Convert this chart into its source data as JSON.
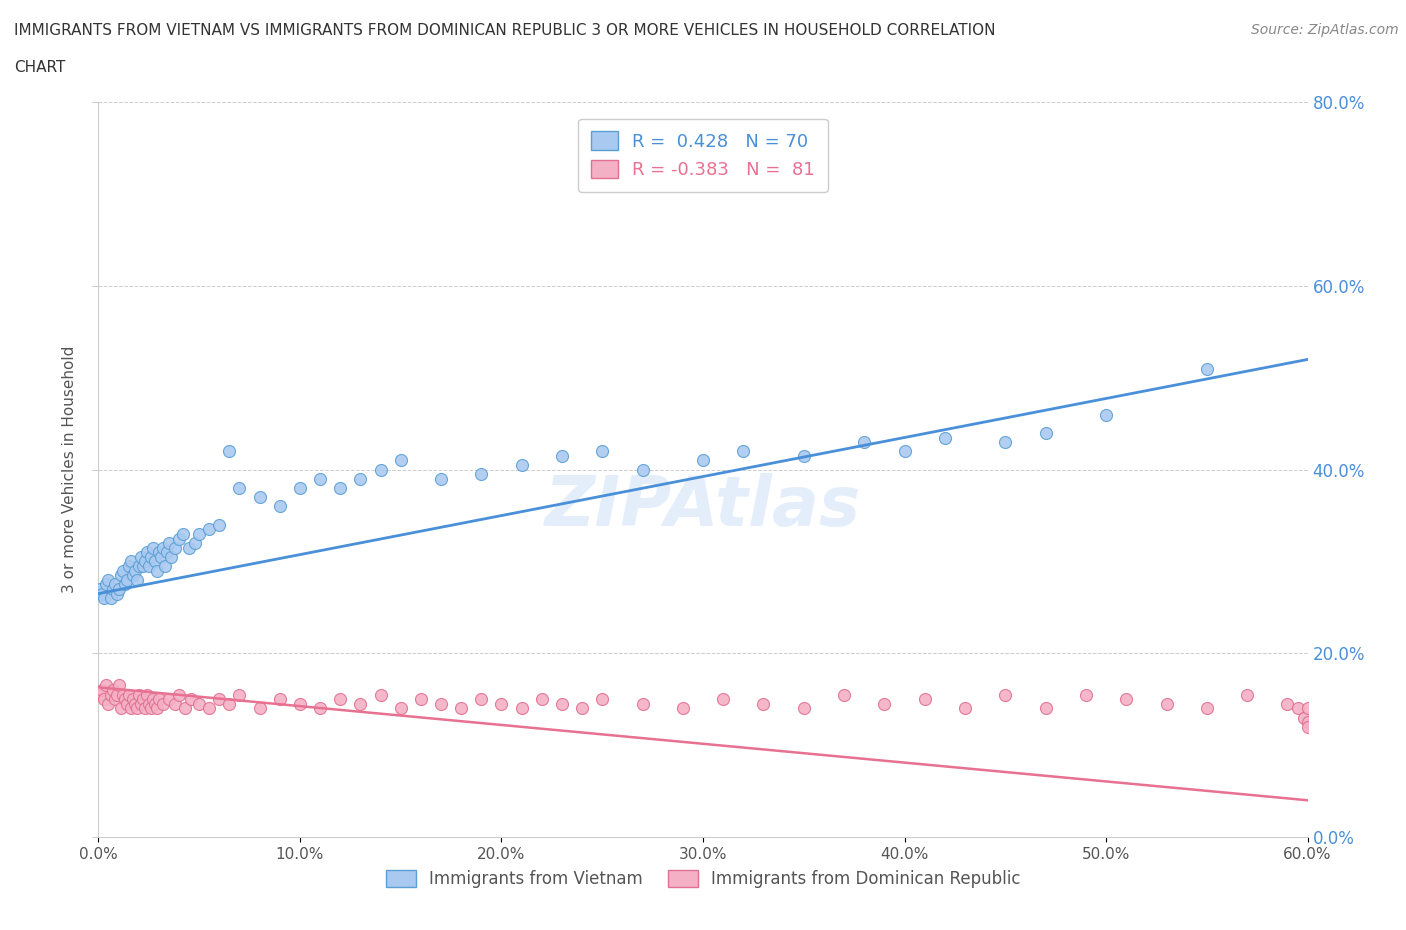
{
  "title_line1": "IMMIGRANTS FROM VIETNAM VS IMMIGRANTS FROM DOMINICAN REPUBLIC 3 OR MORE VEHICLES IN HOUSEHOLD CORRELATION",
  "title_line2": "CHART",
  "source": "Source: ZipAtlas.com",
  "ylabel": "3 or more Vehicles in Household",
  "vietnam_color": "#aac9f0",
  "vietnam_edge_color": "#5a9fd4",
  "dr_color": "#f4b0c5",
  "dr_edge_color": "#e07090",
  "trend_vietnam_color": "#4a90d9",
  "trend_dr_color": "#e87090",
  "R_vietnam": 0.428,
  "N_vietnam": 70,
  "R_dr": -0.383,
  "N_dr": 81,
  "legend_label_vietnam": "Immigrants from Vietnam",
  "legend_label_dr": "Immigrants from Dominican Republic",
  "watermark": "ZIPAtlas",
  "vietnam_x": [
    0.001,
    0.002,
    0.003,
    0.004,
    0.005,
    0.006,
    0.007,
    0.008,
    0.009,
    0.01,
    0.011,
    0.012,
    0.013,
    0.014,
    0.015,
    0.016,
    0.017,
    0.018,
    0.019,
    0.02,
    0.021,
    0.022,
    0.023,
    0.024,
    0.025,
    0.026,
    0.027,
    0.028,
    0.029,
    0.03,
    0.031,
    0.032,
    0.033,
    0.034,
    0.035,
    0.036,
    0.038,
    0.04,
    0.042,
    0.045,
    0.048,
    0.05,
    0.055,
    0.06,
    0.065,
    0.07,
    0.08,
    0.09,
    0.1,
    0.11,
    0.12,
    0.13,
    0.14,
    0.15,
    0.17,
    0.19,
    0.21,
    0.23,
    0.25,
    0.27,
    0.3,
    0.32,
    0.35,
    0.38,
    0.4,
    0.42,
    0.45,
    0.47,
    0.5,
    0.55
  ],
  "vietnam_y": [
    0.27,
    0.265,
    0.26,
    0.275,
    0.28,
    0.26,
    0.27,
    0.275,
    0.265,
    0.27,
    0.285,
    0.29,
    0.275,
    0.28,
    0.295,
    0.3,
    0.285,
    0.29,
    0.28,
    0.295,
    0.305,
    0.295,
    0.3,
    0.31,
    0.295,
    0.305,
    0.315,
    0.3,
    0.29,
    0.31,
    0.305,
    0.315,
    0.295,
    0.31,
    0.32,
    0.305,
    0.315,
    0.325,
    0.33,
    0.315,
    0.32,
    0.33,
    0.335,
    0.34,
    0.42,
    0.38,
    0.37,
    0.36,
    0.38,
    0.39,
    0.38,
    0.39,
    0.4,
    0.41,
    0.39,
    0.395,
    0.405,
    0.415,
    0.42,
    0.4,
    0.41,
    0.42,
    0.415,
    0.43,
    0.42,
    0.435,
    0.43,
    0.44,
    0.46,
    0.51
  ],
  "dr_x": [
    0.001,
    0.002,
    0.003,
    0.004,
    0.005,
    0.006,
    0.007,
    0.008,
    0.009,
    0.01,
    0.011,
    0.012,
    0.013,
    0.014,
    0.015,
    0.016,
    0.017,
    0.018,
    0.019,
    0.02,
    0.021,
    0.022,
    0.023,
    0.024,
    0.025,
    0.026,
    0.027,
    0.028,
    0.029,
    0.03,
    0.032,
    0.035,
    0.038,
    0.04,
    0.043,
    0.046,
    0.05,
    0.055,
    0.06,
    0.065,
    0.07,
    0.08,
    0.09,
    0.1,
    0.11,
    0.12,
    0.13,
    0.14,
    0.15,
    0.16,
    0.17,
    0.18,
    0.19,
    0.2,
    0.21,
    0.22,
    0.23,
    0.24,
    0.25,
    0.27,
    0.29,
    0.31,
    0.33,
    0.35,
    0.37,
    0.39,
    0.41,
    0.43,
    0.45,
    0.47,
    0.49,
    0.51,
    0.53,
    0.55,
    0.57,
    0.59,
    0.595,
    0.598,
    0.6,
    0.6,
    0.6
  ],
  "dr_y": [
    0.155,
    0.16,
    0.15,
    0.165,
    0.145,
    0.155,
    0.16,
    0.15,
    0.155,
    0.165,
    0.14,
    0.155,
    0.15,
    0.145,
    0.155,
    0.14,
    0.15,
    0.145,
    0.14,
    0.155,
    0.145,
    0.15,
    0.14,
    0.155,
    0.145,
    0.14,
    0.15,
    0.145,
    0.14,
    0.15,
    0.145,
    0.15,
    0.145,
    0.155,
    0.14,
    0.15,
    0.145,
    0.14,
    0.15,
    0.145,
    0.155,
    0.14,
    0.15,
    0.145,
    0.14,
    0.15,
    0.145,
    0.155,
    0.14,
    0.15,
    0.145,
    0.14,
    0.15,
    0.145,
    0.14,
    0.15,
    0.145,
    0.14,
    0.15,
    0.145,
    0.14,
    0.15,
    0.145,
    0.14,
    0.155,
    0.145,
    0.15,
    0.14,
    0.155,
    0.14,
    0.155,
    0.15,
    0.145,
    0.14,
    0.155,
    0.145,
    0.14,
    0.13,
    0.14,
    0.125,
    0.12
  ],
  "xmin": 0.0,
  "xmax": 0.6,
  "ymin": 0.0,
  "ymax": 0.8,
  "yticks": [
    0.0,
    0.2,
    0.4,
    0.6,
    0.8
  ],
  "ytick_labels_right": [
    "0.0%",
    "20.0%",
    "40.0%",
    "60.0%",
    "80.0%"
  ],
  "xticks": [
    0.0,
    0.1,
    0.2,
    0.3,
    0.4,
    0.5,
    0.6
  ],
  "xtick_labels": [
    "0.0%",
    "10.0%",
    "20.0%",
    "30.0%",
    "40.0%",
    "50.0%",
    "60.0%"
  ],
  "grid_color": "#cccccc",
  "background_color": "#ffffff",
  "title_color": "#333333",
  "axis_tick_color": "#4a90d9"
}
